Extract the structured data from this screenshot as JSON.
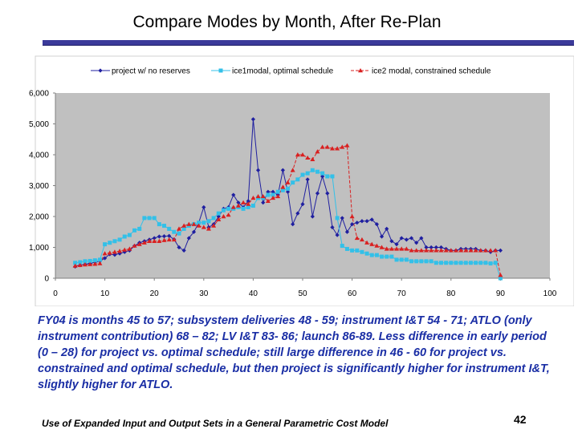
{
  "slide": {
    "title": "Compare Modes by Month, After Re-Plan",
    "description": "FY04 is months 45 to 57; subsystem deliveries 48 - 59; instrument I&T 54 - 71; ATLO (only instrument contribution) 68 – 82; LV I&T 83- 86; launch 86-89. Less difference in early period (0 – 28) for project vs. optimal schedule; still large difference in 46 - 60 for project vs. constrained and optimal schedule, but then project is significantly higher for instrument I&T, slightly higher for ATLO.",
    "footer": "Use of Expanded Input and Output Sets in a General Parametric Cost Model",
    "page_number": "42"
  },
  "chart_data": {
    "type": "line",
    "title": "",
    "xlabel": "",
    "ylabel": "",
    "xlim": [
      0,
      100
    ],
    "ylim": [
      0,
      6000
    ],
    "x_ticks": [
      "0",
      "10",
      "20",
      "30",
      "40",
      "50",
      "60",
      "70",
      "80",
      "90",
      "100"
    ],
    "y_ticks": [
      "0",
      "1,000",
      "2,000",
      "3,000",
      "4,000",
      "5,000",
      "6,000"
    ],
    "grid": false,
    "legend_position": "top",
    "series": [
      {
        "name": "project w/ no reserves",
        "color": "#1f1fa0",
        "marker": "diamond",
        "line": "solid",
        "x": [
          4,
          5,
          6,
          7,
          8,
          9,
          10,
          11,
          12,
          13,
          14,
          15,
          16,
          17,
          18,
          19,
          20,
          21,
          22,
          23,
          24,
          25,
          26,
          27,
          28,
          29,
          30,
          31,
          32,
          33,
          34,
          35,
          36,
          37,
          38,
          39,
          40,
          41,
          42,
          43,
          44,
          45,
          46,
          47,
          48,
          49,
          50,
          51,
          52,
          53,
          54,
          55,
          56,
          57,
          58,
          59,
          60,
          61,
          62,
          63,
          64,
          65,
          66,
          67,
          68,
          69,
          70,
          71,
          72,
          73,
          74,
          75,
          76,
          77,
          78,
          79,
          80,
          81,
          82,
          83,
          84,
          85,
          86,
          87,
          88,
          89,
          90
        ],
        "values": [
          380,
          420,
          450,
          480,
          520,
          550,
          650,
          780,
          760,
          800,
          850,
          900,
          1050,
          1150,
          1200,
          1250,
          1300,
          1350,
          1360,
          1370,
          1260,
          1000,
          900,
          1300,
          1500,
          1800,
          2300,
          1650,
          1750,
          2000,
          2250,
          2300,
          2700,
          2450,
          2300,
          2500,
          5150,
          3500,
          2450,
          2800,
          2800,
          2700,
          3500,
          2800,
          1750,
          2100,
          2400,
          3200,
          2000,
          2750,
          3300,
          2750,
          1650,
          1400,
          1950,
          1500,
          1750,
          1800,
          1850,
          1850,
          1900,
          1750,
          1350,
          1600,
          1200,
          1100,
          1300,
          1250,
          1300,
          1150,
          1300,
          1000,
          1000,
          1000,
          1000,
          950,
          900,
          900,
          950,
          950,
          950,
          950,
          900,
          900,
          850,
          900,
          900
        ]
      },
      {
        "name": "ice1modal, optimal schedule",
        "color": "#33c0e8",
        "marker": "square",
        "line": "solid",
        "x": [
          4,
          5,
          6,
          7,
          8,
          9,
          10,
          11,
          12,
          13,
          14,
          15,
          16,
          17,
          18,
          19,
          20,
          21,
          22,
          23,
          24,
          25,
          26,
          27,
          28,
          29,
          30,
          31,
          32,
          33,
          34,
          35,
          36,
          37,
          38,
          39,
          40,
          41,
          42,
          43,
          44,
          45,
          46,
          47,
          48,
          49,
          50,
          51,
          52,
          53,
          54,
          55,
          56,
          57,
          58,
          59,
          60,
          61,
          62,
          63,
          64,
          65,
          66,
          67,
          68,
          69,
          70,
          71,
          72,
          73,
          74,
          75,
          76,
          77,
          78,
          79,
          80,
          81,
          82,
          83,
          84,
          85,
          86,
          87,
          88,
          89,
          90
        ],
        "values": [
          500,
          520,
          550,
          560,
          580,
          600,
          1100,
          1150,
          1200,
          1250,
          1350,
          1400,
          1550,
          1600,
          1950,
          1950,
          1950,
          1750,
          1700,
          1600,
          1500,
          1450,
          1600,
          1700,
          1750,
          1800,
          1800,
          1850,
          1950,
          2100,
          2200,
          2250,
          2250,
          2300,
          2250,
          2300,
          2350,
          2600,
          2600,
          2700,
          2700,
          2800,
          2850,
          2900,
          3100,
          3200,
          3350,
          3400,
          3500,
          3450,
          3400,
          3300,
          3300,
          1950,
          1050,
          950,
          900,
          900,
          850,
          800,
          750,
          750,
          700,
          700,
          700,
          600,
          600,
          600,
          550,
          550,
          550,
          550,
          550,
          500,
          500,
          500,
          500,
          500,
          500,
          500,
          500,
          500,
          500,
          500,
          480,
          500,
          0
        ]
      },
      {
        "name": "ice2 modal, constrained schedule",
        "color": "#d92020",
        "marker": "triangle",
        "line": "dashed",
        "x": [
          4,
          5,
          6,
          7,
          8,
          9,
          10,
          11,
          12,
          13,
          14,
          15,
          16,
          17,
          18,
          19,
          20,
          21,
          22,
          23,
          24,
          25,
          26,
          27,
          28,
          29,
          30,
          31,
          32,
          33,
          34,
          35,
          36,
          37,
          38,
          39,
          40,
          41,
          42,
          43,
          44,
          45,
          46,
          47,
          48,
          49,
          50,
          51,
          52,
          53,
          54,
          55,
          56,
          57,
          58,
          59,
          60,
          61,
          62,
          63,
          64,
          65,
          66,
          67,
          68,
          69,
          70,
          71,
          72,
          73,
          74,
          75,
          76,
          77,
          78,
          79,
          80,
          81,
          82,
          83,
          84,
          85,
          86,
          87,
          88,
          89,
          90
        ],
        "values": [
          400,
          420,
          440,
          450,
          460,
          480,
          800,
          820,
          850,
          880,
          920,
          950,
          1050,
          1100,
          1150,
          1200,
          1200,
          1200,
          1230,
          1250,
          1250,
          1600,
          1700,
          1750,
          1750,
          1700,
          1650,
          1600,
          1700,
          1900,
          2000,
          2050,
          2300,
          2350,
          2450,
          2400,
          2600,
          2650,
          2650,
          2500,
          2600,
          2650,
          2950,
          3100,
          3500,
          4000,
          4000,
          3900,
          3850,
          4100,
          4250,
          4250,
          4200,
          4200,
          4250,
          4300,
          2000,
          1300,
          1250,
          1150,
          1100,
          1050,
          1000,
          950,
          950,
          950,
          950,
          950,
          900,
          900,
          900,
          900,
          900,
          900,
          900,
          900,
          900,
          900,
          900,
          900,
          900,
          900,
          900,
          900,
          900,
          900,
          100
        ]
      }
    ]
  }
}
